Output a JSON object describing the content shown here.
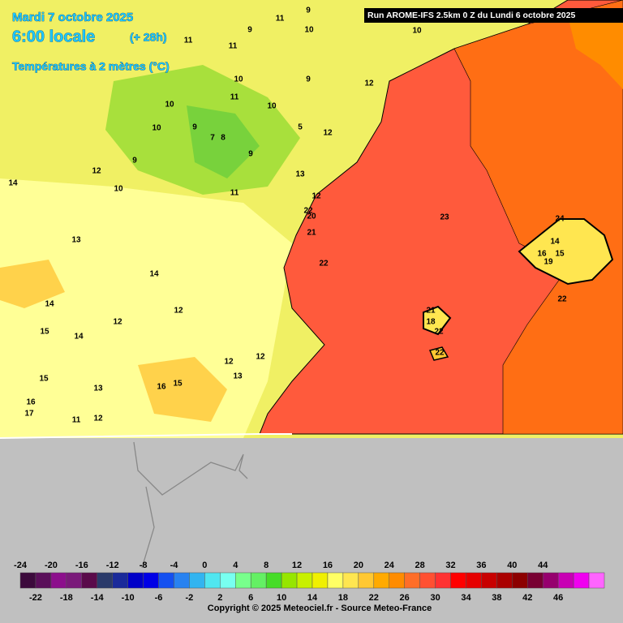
{
  "header": {
    "date": "Mardi 7 octobre 2025",
    "time": "6:00 locale",
    "lead": "(+ 28h)",
    "variable": "Températures à 2 mètres (°C)",
    "run": "Run AROME-IFS 2.5km 0 Z du Lundi 6 octobre 2025"
  },
  "map_labels": [
    "11",
    "9",
    "10",
    "10",
    "9",
    "11",
    "11",
    "10",
    "11",
    "10",
    "10",
    "9",
    "12",
    "9",
    "10",
    "5",
    "7",
    "8",
    "12",
    "9",
    "9",
    "12",
    "13",
    "10",
    "14",
    "11",
    "12",
    "22",
    "20",
    "21",
    "23",
    "24",
    "14",
    "13",
    "22",
    "16",
    "15",
    "19",
    "14",
    "14",
    "22",
    "12",
    "21",
    "18",
    "12",
    "22",
    "15",
    "14",
    "22",
    "12",
    "12",
    "15",
    "13",
    "16",
    "15",
    "13",
    "16",
    "17",
    "11",
    "12"
  ],
  "legend": {
    "top_labels": [
      -24,
      -20,
      -16,
      -12,
      -8,
      -4,
      0,
      4,
      8,
      12,
      16,
      20,
      24,
      28,
      32,
      36,
      40,
      44
    ],
    "bottom_labels": [
      -22,
      -18,
      -14,
      -10,
      -6,
      -2,
      2,
      6,
      10,
      14,
      18,
      22,
      26,
      30,
      34,
      38,
      42,
      46
    ],
    "colors": [
      "#3c0a3c",
      "#5a0f5a",
      "#8c0f8c",
      "#7a1a7a",
      "#5a0a4a",
      "#2a3a6a",
      "#1a2a9a",
      "#0000c8",
      "#0000e6",
      "#1450f0",
      "#2882f0",
      "#32b4f0",
      "#50e6f0",
      "#78fff0",
      "#78ff8c",
      "#64f064",
      "#46dc28",
      "#96e600",
      "#c8f000",
      "#f0f000",
      "#ffff64",
      "#ffe650",
      "#ffc832",
      "#ffaa00",
      "#ff8c00",
      "#ff6e28",
      "#ff5032",
      "#ff3232",
      "#ff0000",
      "#e60000",
      "#c80000",
      "#aa0000",
      "#8c0000",
      "#780032",
      "#96006e",
      "#c800b4",
      "#f000f0",
      "#ff64ff"
    ]
  },
  "footer": {
    "copyright": "Copyright © 2025 Meteociel.fr - Source Meteo-France"
  }
}
